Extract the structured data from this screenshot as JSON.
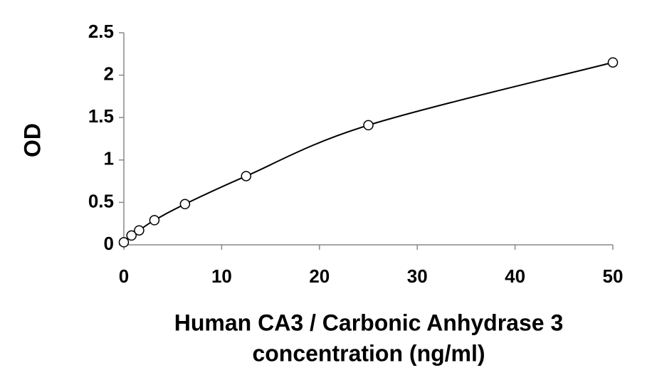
{
  "chart_data": {
    "type": "scatter",
    "xlabel": [
      "Human CA3 / Carbonic Anhydrase 3",
      "concentration (ng/ml)"
    ],
    "ylabel": "OD",
    "x": [
      0,
      0.78,
      1.56,
      3.125,
      6.25,
      12.5,
      25,
      50
    ],
    "series": [
      {
        "color": "#000000",
        "values": [
          0.03,
          0.11,
          0.17,
          0.29,
          0.48,
          0.81,
          1.41,
          2.15
        ]
      }
    ],
    "xlim": [
      0,
      50
    ],
    "xticks": [
      0,
      10,
      20,
      30,
      40,
      50
    ],
    "ylim": [
      0,
      2.5
    ],
    "yticks": [
      0,
      0.5,
      1,
      1.5,
      2,
      2.5
    ],
    "grid": false,
    "fit_curve": true
  }
}
